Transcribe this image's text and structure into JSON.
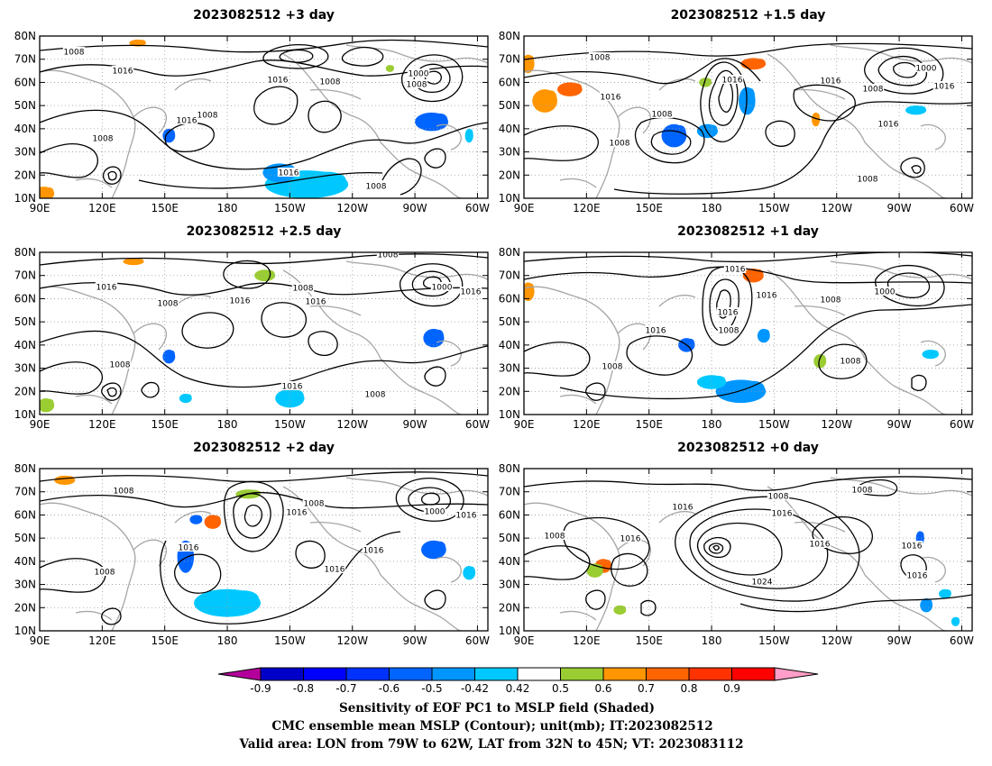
{
  "panels": [
    {
      "title": "2023082512 +3 day",
      "contour_labels": [
        "1008",
        "1016",
        "1008",
        "1000",
        "1008",
        "1016",
        "1008",
        "1016",
        "1016",
        "1008",
        "1008"
      ],
      "shading": [
        {
          "lon": 218,
          "lat": 16,
          "rx": 20,
          "ry": 6,
          "color": "#00c8ff"
        },
        {
          "lon": 205,
          "lat": 21,
          "rx": 8,
          "ry": 4,
          "color": "#0096ff"
        },
        {
          "lon": 278,
          "lat": 43,
          "rx": 8,
          "ry": 4,
          "color": "#0064ff"
        },
        {
          "lon": 152,
          "lat": 37,
          "rx": 3,
          "ry": 3,
          "color": "#0064ff"
        },
        {
          "lon": 92,
          "lat": 12,
          "rx": 5,
          "ry": 3,
          "color": "#ff9600"
        },
        {
          "lon": 137,
          "lat": 77,
          "rx": 4,
          "ry": 1.5,
          "color": "#ff9600"
        },
        {
          "lon": 258,
          "lat": 66,
          "rx": 2,
          "ry": 1.5,
          "color": "#9acd32"
        },
        {
          "lon": 296,
          "lat": 37,
          "rx": 2,
          "ry": 3,
          "color": "#00c8ff"
        }
      ]
    },
    {
      "title": "2023082512 +1.5 day",
      "contour_labels": [
        "1008",
        "1016",
        "1000",
        "1008",
        "1016",
        "1016",
        "1016",
        "1008",
        "1008",
        "1016",
        "1008"
      ],
      "shading": [
        {
          "lon": 100,
          "lat": 52,
          "rx": 6,
          "ry": 5,
          "color": "#ff9600"
        },
        {
          "lon": 92,
          "lat": 68,
          "rx": 3,
          "ry": 4,
          "color": "#ff9600"
        },
        {
          "lon": 112,
          "lat": 57,
          "rx": 6,
          "ry": 3,
          "color": "#ff6400"
        },
        {
          "lon": 162,
          "lat": 37,
          "rx": 6,
          "ry": 5,
          "color": "#0064ff"
        },
        {
          "lon": 178,
          "lat": 39,
          "rx": 5,
          "ry": 3,
          "color": "#0096ff"
        },
        {
          "lon": 197,
          "lat": 52,
          "rx": 4,
          "ry": 6,
          "color": "#0096ff"
        },
        {
          "lon": 200,
          "lat": 68,
          "rx": 6,
          "ry": 2.5,
          "color": "#ff6400"
        },
        {
          "lon": 177,
          "lat": 60,
          "rx": 3,
          "ry": 2,
          "color": "#9acd32"
        },
        {
          "lon": 230,
          "lat": 44,
          "rx": 2,
          "ry": 3,
          "color": "#ff9600"
        },
        {
          "lon": 278,
          "lat": 48,
          "rx": 5,
          "ry": 2,
          "color": "#00c8ff"
        }
      ]
    },
    {
      "title": "2023082512 +2.5 day",
      "contour_labels": [
        "1016",
        "1008",
        "1008",
        "1016",
        "1016",
        "1008",
        "1000",
        "1016",
        "1008",
        "1016",
        "1008"
      ],
      "shading": [
        {
          "lon": 210,
          "lat": 17,
          "rx": 7,
          "ry": 4,
          "color": "#00c8ff"
        },
        {
          "lon": 152,
          "lat": 35,
          "rx": 3,
          "ry": 3,
          "color": "#0064ff"
        },
        {
          "lon": 279,
          "lat": 43,
          "rx": 5,
          "ry": 4,
          "color": "#0064ff"
        },
        {
          "lon": 198,
          "lat": 70,
          "rx": 5,
          "ry": 2.5,
          "color": "#9acd32"
        },
        {
          "lon": 135,
          "lat": 76,
          "rx": 5,
          "ry": 1.5,
          "color": "#ff9600"
        },
        {
          "lon": 93,
          "lat": 14,
          "rx": 4,
          "ry": 3,
          "color": "#9acd32"
        },
        {
          "lon": 160,
          "lat": 17,
          "rx": 3,
          "ry": 2,
          "color": "#00c8ff"
        }
      ]
    },
    {
      "title": "2023082512 +1 day",
      "contour_labels": [
        "1016",
        "1016",
        "1008",
        "1000",
        "1008",
        "1016",
        "1008",
        "1008",
        "1016"
      ],
      "shading": [
        {
          "lon": 194,
          "lat": 20,
          "rx": 12,
          "ry": 5,
          "color": "#0096ff"
        },
        {
          "lon": 180,
          "lat": 24,
          "rx": 7,
          "ry": 3,
          "color": "#00c8ff"
        },
        {
          "lon": 200,
          "lat": 70,
          "rx": 5,
          "ry": 3,
          "color": "#ff6400"
        },
        {
          "lon": 168,
          "lat": 40,
          "rx": 4,
          "ry": 3,
          "color": "#0064ff"
        },
        {
          "lon": 205,
          "lat": 44,
          "rx": 3,
          "ry": 3,
          "color": "#0096ff"
        },
        {
          "lon": 92,
          "lat": 63,
          "rx": 3,
          "ry": 4,
          "color": "#ff9600"
        },
        {
          "lon": 232,
          "lat": 33,
          "rx": 3,
          "ry": 3,
          "color": "#9acd32"
        },
        {
          "lon": 285,
          "lat": 36,
          "rx": 4,
          "ry": 2,
          "color": "#00c8ff"
        }
      ]
    },
    {
      "title": "2023082512 +2 day",
      "contour_labels": [
        "1008",
        "1008",
        "1016",
        "1000",
        "1016",
        "1016",
        "1016",
        "1016",
        "1008"
      ],
      "shading": [
        {
          "lon": 180,
          "lat": 22,
          "rx": 16,
          "ry": 6,
          "color": "#00c8ff"
        },
        {
          "lon": 160,
          "lat": 42,
          "rx": 4,
          "ry": 7,
          "color": "#0064ff"
        },
        {
          "lon": 173,
          "lat": 57,
          "rx": 4,
          "ry": 3,
          "color": "#ff6400"
        },
        {
          "lon": 165,
          "lat": 58,
          "rx": 3,
          "ry": 2,
          "color": "#0064ff"
        },
        {
          "lon": 279,
          "lat": 45,
          "rx": 6,
          "ry": 4,
          "color": "#0064ff"
        },
        {
          "lon": 296,
          "lat": 35,
          "rx": 3,
          "ry": 3,
          "color": "#00c8ff"
        },
        {
          "lon": 102,
          "lat": 75,
          "rx": 5,
          "ry": 2,
          "color": "#ff9600"
        },
        {
          "lon": 190,
          "lat": 69,
          "rx": 6,
          "ry": 2,
          "color": "#9acd32"
        }
      ]
    },
    {
      "title": "2023082512 +0 day",
      "contour_labels": [
        "1008",
        "1016",
        "1016",
        "1008",
        "1016",
        "1024",
        "1016",
        "1016",
        "1008",
        "1016"
      ],
      "shading": [
        {
          "lon": 128,
          "lat": 38,
          "rx": 4,
          "ry": 3,
          "color": "#ff6400"
        },
        {
          "lon": 124,
          "lat": 36,
          "rx": 4,
          "ry": 3,
          "color": "#9acd32"
        },
        {
          "lon": 136,
          "lat": 19,
          "rx": 3,
          "ry": 2,
          "color": "#9acd32"
        },
        {
          "lon": 280,
          "lat": 50,
          "rx": 2,
          "ry": 3,
          "color": "#0064ff"
        },
        {
          "lon": 283,
          "lat": 21,
          "rx": 3,
          "ry": 3,
          "color": "#0096ff"
        },
        {
          "lon": 292,
          "lat": 26,
          "rx": 3,
          "ry": 2,
          "color": "#00c8ff"
        },
        {
          "lon": 297,
          "lat": 14,
          "rx": 2,
          "ry": 2,
          "color": "#00c8ff"
        }
      ]
    }
  ],
  "axes": {
    "lat_ticks": [
      "80N",
      "70N",
      "60N",
      "50N",
      "40N",
      "30N",
      "20N",
      "10N"
    ],
    "lon_ticks": [
      "90E",
      "120E",
      "150E",
      "180",
      "150W",
      "120W",
      "90W",
      "60W"
    ],
    "lon_range": [
      90,
      305
    ],
    "lat_range": [
      10,
      80
    ]
  },
  "colorbar": {
    "colors": [
      "#b4009b",
      "#0000c8",
      "#0000ff",
      "#0032ff",
      "#0064ff",
      "#0096ff",
      "#00c8ff",
      "#ffffff",
      "#9acd32",
      "#ff9600",
      "#ff6400",
      "#ff3200",
      "#ff0000",
      "#ff9ec8"
    ],
    "labels": [
      "-0.9",
      "-0.8",
      "-0.7",
      "-0.6",
      "-0.5",
      "-0.42",
      "0.42",
      "0.5",
      "0.6",
      "0.7",
      "0.8",
      "0.9"
    ]
  },
  "caption": {
    "line1": "Sensitivity of EOF PC1 to MSLP field (Shaded)",
    "line2": "CMC ensemble mean MSLP (Contour); unit(mb); IT:2023082512",
    "line3": "Valid area: LON from 79W to 62W, LAT from 32N to 45N; VT: 2023083112"
  }
}
